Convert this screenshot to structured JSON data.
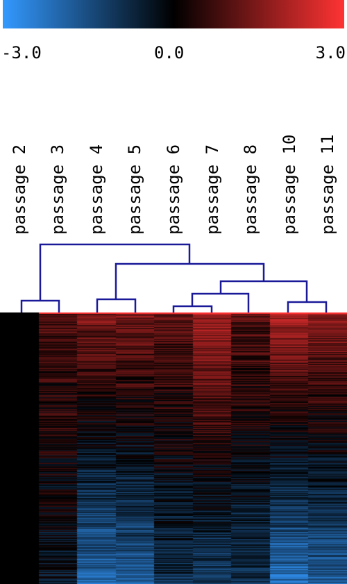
{
  "color_scale": {
    "min_label": "-3.0",
    "mid_label": "0.0",
    "max_label": "3.0",
    "min_color": "#3399ff",
    "mid_color": "#000000",
    "max_color": "#ff3333"
  },
  "chart_data": {
    "type": "heatmap",
    "columns": [
      "passage 2",
      "passage 3",
      "passage 4",
      "passage 5",
      "passage 6",
      "passage 7",
      "passage 8",
      "passage 10",
      "passage 11"
    ],
    "value_range": [
      -3.0,
      3.0
    ],
    "dendrogram": "hierarchical clustering: (passage 2, passage 3) vs ((passage 4, passage 5), (((passage 6, passage 7), passage 8), (passage 10, passage 11)))",
    "column_profiles": [
      {
        "column": "passage 2",
        "top_value": 0.0,
        "bottom_value": 0.0
      },
      {
        "column": "passage 3",
        "top_value": 0.8,
        "bottom_value": -0.4
      },
      {
        "column": "passage 4",
        "top_value": 1.4,
        "bottom_value": -2.0
      },
      {
        "column": "passage 5",
        "top_value": 1.4,
        "bottom_value": -1.8
      },
      {
        "column": "passage 6",
        "top_value": 1.0,
        "bottom_value": -0.9
      },
      {
        "column": "passage 7",
        "top_value": 1.8,
        "bottom_value": -1.2
      },
      {
        "column": "passage 8",
        "top_value": 1.0,
        "bottom_value": -1.0
      },
      {
        "column": "passage 10",
        "top_value": 1.9,
        "bottom_value": -2.2
      },
      {
        "column": "passage 11",
        "top_value": 1.6,
        "bottom_value": -1.8
      }
    ]
  }
}
